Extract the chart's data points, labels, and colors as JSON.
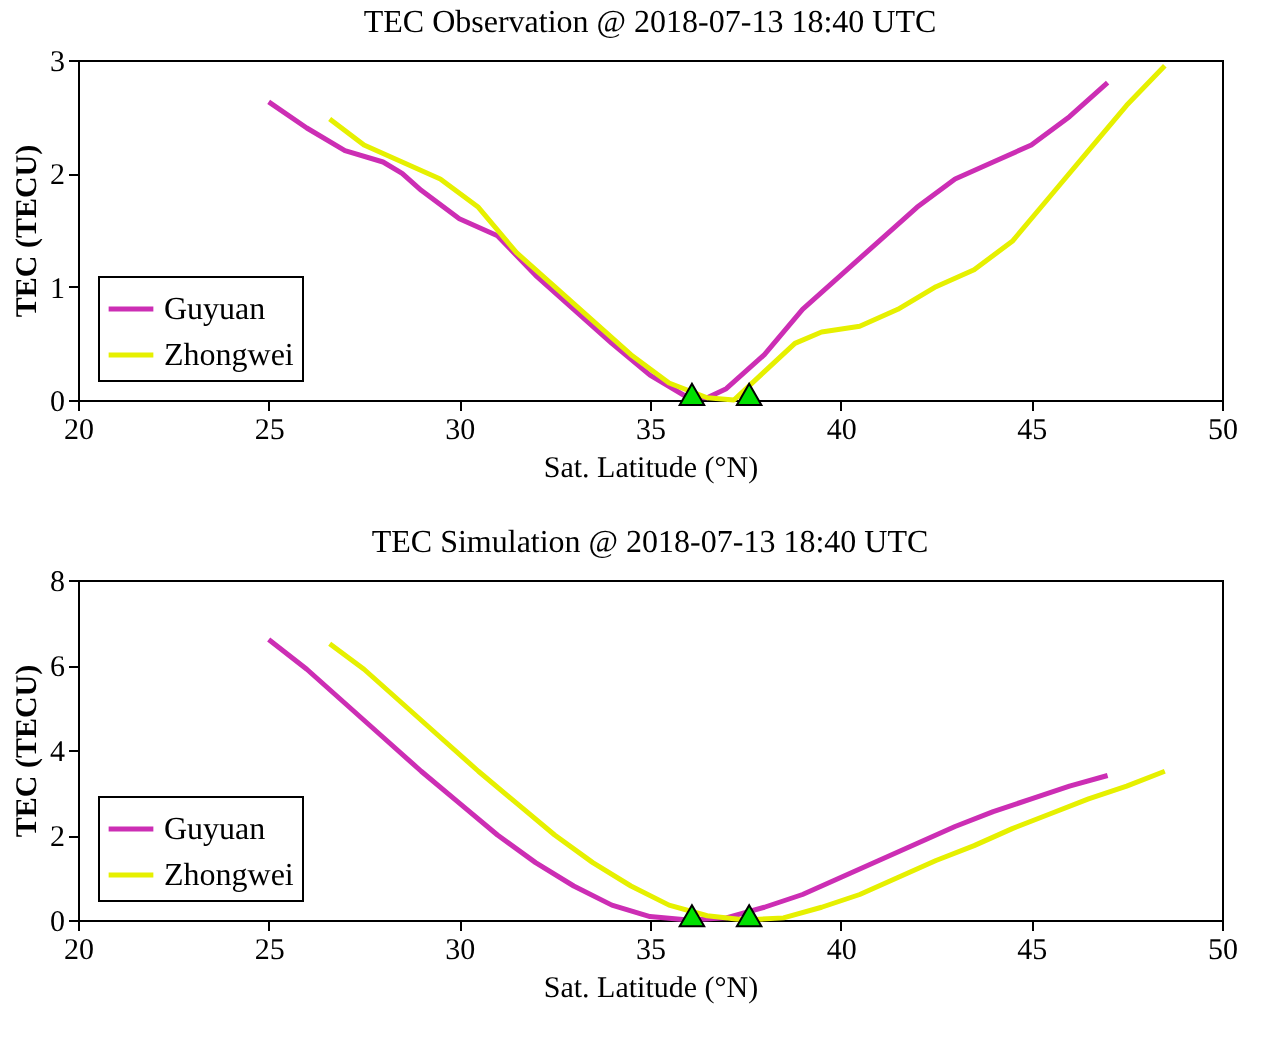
{
  "chart_data": [
    {
      "type": "line",
      "title": "TEC Observation @ 2018-07-13 18:40 UTC",
      "xlabel": "Sat. Latitude (°N)",
      "ylabel": "TEC (TECU)",
      "xlim": [
        20,
        50
      ],
      "xticks": [
        20,
        25,
        30,
        35,
        40,
        45,
        50
      ],
      "ylim": [
        0,
        3
      ],
      "yticks": [
        0,
        1,
        2,
        3
      ],
      "grid": false,
      "legend": "bottom left",
      "marker": "none",
      "line_style": "solid",
      "series": [
        {
          "name": "Guyuan",
          "color": "#cc2eb4",
          "x": [
            25,
            26,
            27,
            28,
            28.5,
            29,
            30,
            31,
            32,
            33,
            34,
            35,
            36,
            36.5,
            37,
            38,
            39,
            40,
            41,
            42,
            43,
            44,
            45,
            46,
            47
          ],
          "values": [
            2.63,
            2.4,
            2.2,
            2.1,
            2.0,
            1.85,
            1.6,
            1.45,
            1.1,
            0.8,
            0.5,
            0.22,
            0.02,
            0.02,
            0.1,
            0.4,
            0.8,
            1.1,
            1.4,
            1.7,
            1.95,
            2.1,
            2.25,
            2.5,
            2.8
          ]
        },
        {
          "name": "Zhongwei",
          "color": "#e6f000",
          "x": [
            26.6,
            27.5,
            28.5,
            29.5,
            30.5,
            31.5,
            32.5,
            33.5,
            34.5,
            35.5,
            36.5,
            37.2,
            38,
            38.8,
            39.5,
            40.5,
            41.5,
            42.5,
            43.5,
            44.5,
            45.5,
            46.5,
            47.5,
            48.5
          ],
          "values": [
            2.48,
            2.25,
            2.1,
            1.95,
            1.7,
            1.3,
            1.0,
            0.7,
            0.4,
            0.15,
            0.02,
            0.0,
            0.25,
            0.5,
            0.6,
            0.65,
            0.8,
            1.0,
            1.15,
            1.4,
            1.8,
            2.2,
            2.6,
            2.95
          ]
        },
        {
          "type": "scatter",
          "marker": "triangle",
          "color": "#00e000",
          "x": [
            36.1,
            37.6
          ],
          "values": [
            0.05,
            0.05
          ]
        }
      ]
    },
    {
      "type": "line",
      "title": "TEC Simulation @ 2018-07-13 18:40 UTC",
      "xlabel": "Sat. Latitude (°N)",
      "ylabel": "TEC (TECU)",
      "xlim": [
        20,
        50
      ],
      "xticks": [
        20,
        25,
        30,
        35,
        40,
        45,
        50
      ],
      "ylim": [
        0,
        8
      ],
      "yticks": [
        0,
        2,
        4,
        6,
        8
      ],
      "grid": false,
      "legend": "bottom left",
      "marker": "none",
      "line_style": "solid",
      "series": [
        {
          "name": "Guyuan",
          "color": "#cc2eb4",
          "x": [
            25,
            26,
            27,
            28,
            29,
            30,
            31,
            32,
            33,
            34,
            35,
            36,
            37,
            38,
            39,
            40,
            41,
            42,
            43,
            44,
            45,
            46,
            47
          ],
          "values": [
            6.6,
            5.9,
            5.1,
            4.3,
            3.5,
            2.75,
            2.0,
            1.35,
            0.8,
            0.35,
            0.08,
            0.0,
            0.05,
            0.3,
            0.6,
            1.0,
            1.4,
            1.8,
            2.2,
            2.55,
            2.85,
            3.15,
            3.4
          ]
        },
        {
          "name": "Zhongwei",
          "color": "#e6f000",
          "x": [
            26.6,
            27.5,
            28.5,
            29.5,
            30.5,
            31.5,
            32.5,
            33.5,
            34.5,
            35.5,
            36.5,
            37.5,
            38.5,
            39.5,
            40.5,
            41.5,
            42.5,
            43.5,
            44.5,
            45.5,
            46.5,
            47.5,
            48.5
          ],
          "values": [
            6.5,
            5.9,
            5.1,
            4.3,
            3.5,
            2.75,
            2.0,
            1.35,
            0.8,
            0.35,
            0.1,
            0.0,
            0.05,
            0.3,
            0.6,
            1.0,
            1.4,
            1.75,
            2.15,
            2.5,
            2.85,
            3.15,
            3.5
          ]
        },
        {
          "type": "scatter",
          "marker": "triangle",
          "color": "#00e000",
          "x": [
            36.1,
            37.6
          ],
          "values": [
            0.1,
            0.1
          ]
        }
      ]
    }
  ]
}
